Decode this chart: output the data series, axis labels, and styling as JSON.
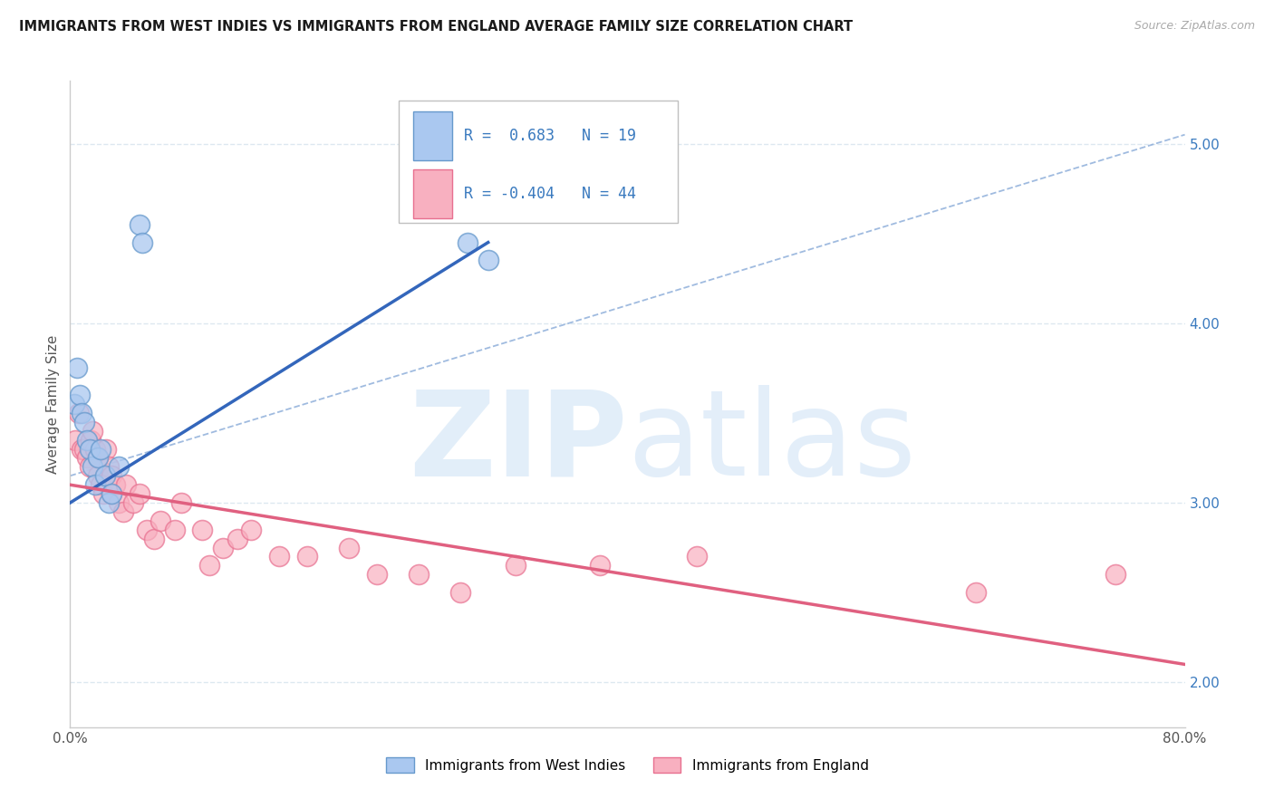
{
  "title": "IMMIGRANTS FROM WEST INDIES VS IMMIGRANTS FROM ENGLAND AVERAGE FAMILY SIZE CORRELATION CHART",
  "source": "Source: ZipAtlas.com",
  "ylabel": "Average Family Size",
  "xlim": [
    0.0,
    80.0
  ],
  "ylim": [
    1.75,
    5.35
  ],
  "yticks": [
    2.0,
    3.0,
    4.0,
    5.0
  ],
  "xticks": [
    0.0,
    10.0,
    20.0,
    30.0,
    40.0,
    50.0,
    60.0,
    70.0,
    80.0
  ],
  "west_indies_R": 0.683,
  "west_indies_N": 19,
  "england_R": -0.404,
  "england_N": 44,
  "west_indies_dot_color": "#aac8f0",
  "west_indies_edge_color": "#6699cc",
  "west_indies_line_color": "#3366bb",
  "england_dot_color": "#f8b0c0",
  "england_edge_color": "#e87090",
  "england_line_color": "#e06080",
  "dashed_line_color": "#88aad8",
  "grid_color": "#dde8f0",
  "background_color": "#ffffff",
  "west_indies_x": [
    0.3,
    0.5,
    0.7,
    0.8,
    1.0,
    1.2,
    1.4,
    1.6,
    1.8,
    2.0,
    2.2,
    2.5,
    2.8,
    3.0,
    3.5,
    5.0,
    5.2,
    28.5,
    30.0
  ],
  "west_indies_y": [
    3.55,
    3.75,
    3.6,
    3.5,
    3.45,
    3.35,
    3.3,
    3.2,
    3.1,
    3.25,
    3.3,
    3.15,
    3.0,
    3.05,
    3.2,
    4.55,
    4.45,
    4.45,
    4.35
  ],
  "england_x": [
    0.4,
    0.6,
    0.8,
    1.0,
    1.2,
    1.4,
    1.5,
    1.6,
    1.8,
    2.0,
    2.0,
    2.2,
    2.4,
    2.6,
    2.8,
    3.0,
    3.0,
    3.2,
    3.5,
    3.8,
    4.0,
    4.5,
    5.0,
    5.5,
    6.0,
    6.5,
    7.5,
    8.0,
    9.5,
    10.0,
    11.0,
    12.0,
    13.0,
    15.0,
    17.0,
    20.0,
    22.0,
    25.0,
    28.0,
    32.0,
    38.0,
    45.0,
    65.0,
    75.0
  ],
  "england_y": [
    3.35,
    3.5,
    3.3,
    3.3,
    3.25,
    3.2,
    3.35,
    3.4,
    3.3,
    3.15,
    3.25,
    3.1,
    3.05,
    3.3,
    3.2,
    3.15,
    3.05,
    3.1,
    3.0,
    2.95,
    3.1,
    3.0,
    3.05,
    2.85,
    2.8,
    2.9,
    2.85,
    3.0,
    2.85,
    2.65,
    2.75,
    2.8,
    2.85,
    2.7,
    2.7,
    2.75,
    2.6,
    2.6,
    2.5,
    2.65,
    2.65,
    2.7,
    2.5,
    2.6
  ],
  "legend_labels": [
    "Immigrants from West Indies",
    "Immigrants from England"
  ],
  "wi_line_x0": 0.0,
  "wi_line_y0": 3.0,
  "wi_line_x1": 30.0,
  "wi_line_y1": 4.45,
  "en_line_x0": 0.0,
  "en_line_y0": 3.1,
  "en_line_x1": 80.0,
  "en_line_y1": 2.1,
  "dash_x0": 0.0,
  "dash_y0": 3.15,
  "dash_x1": 80.0,
  "dash_y1": 5.05
}
